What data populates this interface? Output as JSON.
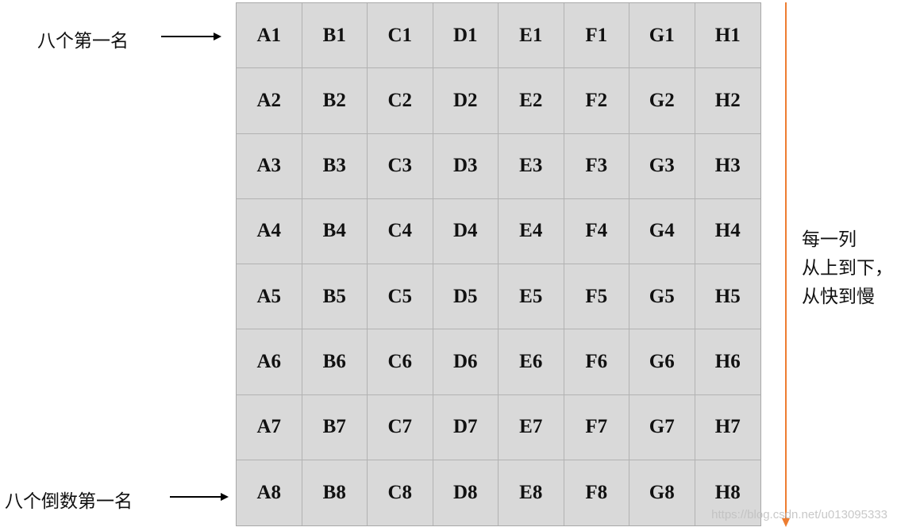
{
  "labels": {
    "first_place": "八个第一名",
    "last_place": "八个倒数第一名"
  },
  "note_lines": [
    "每一列",
    "从上到下，",
    "从快到慢"
  ],
  "grid": {
    "rows": [
      [
        "A1",
        "B1",
        "C1",
        "D1",
        "E1",
        "F1",
        "G1",
        "H1"
      ],
      [
        "A2",
        "B2",
        "C2",
        "D2",
        "E2",
        "F2",
        "G2",
        "H2"
      ],
      [
        "A3",
        "B3",
        "C3",
        "D3",
        "E3",
        "F3",
        "G3",
        "H3"
      ],
      [
        "A4",
        "B4",
        "C4",
        "D4",
        "E4",
        "F4",
        "G4",
        "H4"
      ],
      [
        "A5",
        "B5",
        "C5",
        "D5",
        "E5",
        "F5",
        "G5",
        "H5"
      ],
      [
        "A6",
        "B6",
        "C6",
        "D6",
        "E6",
        "F6",
        "G6",
        "H6"
      ],
      [
        "A7",
        "B7",
        "C7",
        "D7",
        "E7",
        "F7",
        "G7",
        "H7"
      ],
      [
        "A8",
        "B8",
        "C8",
        "D8",
        "E8",
        "F8",
        "G8",
        "H8"
      ]
    ]
  },
  "watermark": "https://blog.csdn.net/u013095333",
  "colors": {
    "cell_fill": "#d9d9d9",
    "arrow_orange": "#ed7d31",
    "arrow_black": "#000000"
  }
}
